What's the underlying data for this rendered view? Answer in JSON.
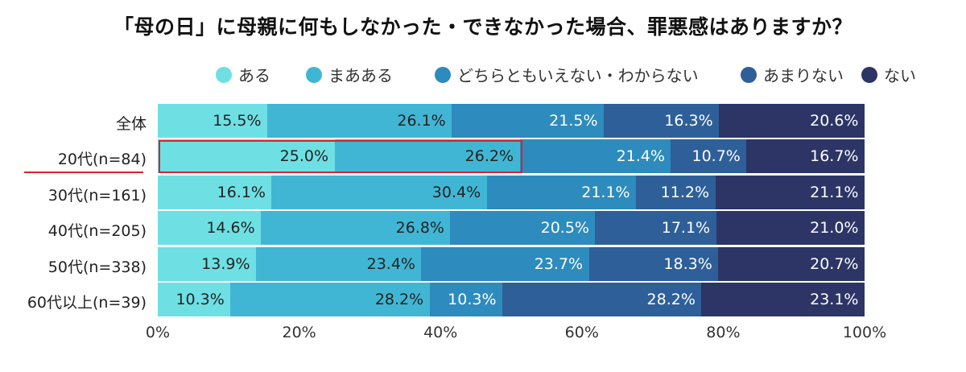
{
  "chart_data": {
    "type": "bar",
    "orientation": "horizontal",
    "stacked": true,
    "title": "「母の日」に母親に何もしなかった・できなかった場合、罪悪感はありますか？",
    "categories": [
      "全体",
      "20代(n=84)",
      "30代(n=161)",
      "40代(n=205)",
      "50代(n=338)",
      "60代以上(n=39)"
    ],
    "series": [
      {
        "name": "ある",
        "color": "#6ee0e4",
        "label_color": "#222222",
        "values": [
          15.5,
          25.0,
          16.1,
          14.6,
          13.9,
          10.3
        ]
      },
      {
        "name": "まあある",
        "color": "#41b6d4",
        "label_color": "#222222",
        "values": [
          26.1,
          26.2,
          30.4,
          26.8,
          23.4,
          28.2
        ]
      },
      {
        "name": "どちらともいえない・わからない",
        "color": "#2d8bbd",
        "label_color": "#ffffff",
        "values": [
          21.5,
          21.4,
          21.1,
          20.5,
          23.7,
          10.3
        ]
      },
      {
        "name": "あまりない",
        "color": "#2e5f99",
        "label_color": "#ffffff",
        "values": [
          16.3,
          10.7,
          11.2,
          17.1,
          18.3,
          28.2
        ]
      },
      {
        "name": "ない",
        "color": "#2c3566",
        "label_color": "#ffffff",
        "values": [
          20.6,
          16.7,
          21.1,
          21.0,
          20.7,
          23.1
        ]
      }
    ],
    "xlim": [
      0,
      100
    ],
    "x_ticks": [
      "0%",
      "20%",
      "40%",
      "60%",
      "80%",
      "100%"
    ],
    "legend_position": "top",
    "grid": false,
    "highlight": {
      "category": "20代(n=84)",
      "series": [
        "ある",
        "まあある"
      ],
      "color": "#d9232c"
    }
  }
}
